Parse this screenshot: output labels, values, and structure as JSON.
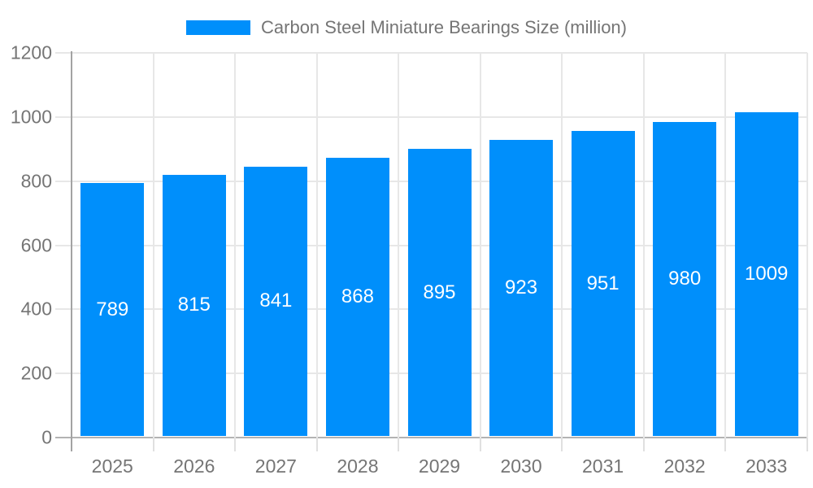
{
  "legend": {
    "label": "Carbon Steel Miniature Bearings Size (million)"
  },
  "chart_data": {
    "type": "bar",
    "title": "Carbon Steel Miniature Bearings Size (million)",
    "categories": [
      "2025",
      "2026",
      "2027",
      "2028",
      "2029",
      "2030",
      "2031",
      "2032",
      "2033"
    ],
    "series": [
      {
        "name": "Carbon Steel Miniature Bearings Size (million)",
        "values": [
          789,
          815,
          841,
          868,
          895,
          923,
          951,
          980,
          1009
        ]
      }
    ],
    "value_labels": [
      789,
      815,
      841,
      868,
      895,
      923,
      951,
      980,
      1009
    ],
    "xlabel": "",
    "ylabel": "",
    "ylim": [
      0,
      1200
    ],
    "yticks": [
      0,
      200,
      400,
      600,
      800,
      1000,
      1200
    ],
    "grid": true,
    "legend_position": "top",
    "value_label_position": "inside-center",
    "colors": {
      "bar": "#008FFB",
      "grid": "#e7e7e7",
      "axis_line": "#a3a3a3",
      "baseline": "#b3b3b3",
      "tick": "#e0e0e0",
      "axis_label": "#757575",
      "value_label": "#ffffff",
      "background": "#ffffff"
    }
  }
}
